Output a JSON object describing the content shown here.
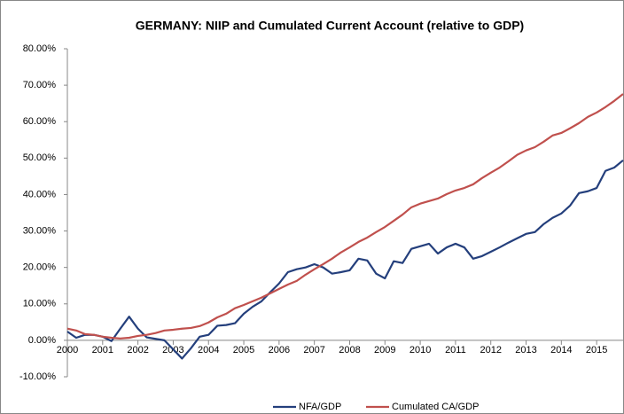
{
  "chart_data": {
    "type": "line",
    "title": "GERMANY: NIIP and Cumulated Current Account (relative to GDP)",
    "x": [
      2000,
      2000.25,
      2000.5,
      2000.75,
      2001,
      2001.25,
      2001.5,
      2001.75,
      2002,
      2002.25,
      2002.5,
      2002.75,
      2003,
      2003.25,
      2003.5,
      2003.75,
      2004,
      2004.25,
      2004.5,
      2004.75,
      2005,
      2005.25,
      2005.5,
      2005.75,
      2006,
      2006.25,
      2006.5,
      2006.75,
      2007,
      2007.25,
      2007.5,
      2007.75,
      2008,
      2008.25,
      2008.5,
      2008.75,
      2009,
      2009.25,
      2009.5,
      2009.75,
      2010,
      2010.25,
      2010.5,
      2010.75,
      2011,
      2011.25,
      2011.5,
      2011.75,
      2012,
      2012.25,
      2012.5,
      2012.75,
      2013,
      2013.25,
      2013.5,
      2013.75,
      2014,
      2014.25,
      2014.5,
      2014.75,
      2015,
      2015.25,
      2015.5,
      2015.75
    ],
    "series": [
      {
        "name": "NFA/GDP",
        "color": "#243f7c",
        "values": [
          2.4,
          0.7,
          1.5,
          1.5,
          1.0,
          -0.2,
          3.2,
          6.5,
          3.2,
          0.8,
          0.4,
          0.0,
          -2.5,
          -5.0,
          -2.2,
          1.0,
          1.5,
          4.0,
          4.2,
          4.7,
          7.3,
          9.2,
          10.7,
          13.2,
          15.6,
          18.7,
          19.5,
          20.0,
          20.9,
          20.0,
          18.3,
          18.7,
          19.2,
          22.4,
          21.9,
          18.3,
          17.0,
          21.7,
          21.2,
          25.1,
          25.8,
          26.5,
          23.8,
          25.5,
          26.5,
          25.5,
          22.4,
          23.1,
          24.3,
          25.5,
          26.8,
          28.0,
          29.2,
          29.7,
          31.9,
          33.6,
          34.8,
          37.0,
          40.4,
          40.9,
          41.8,
          46.5,
          47.4,
          49.4
        ]
      },
      {
        "name": "Cumulated CA/GDP",
        "color": "#c0504d",
        "values": [
          3.2,
          2.7,
          1.7,
          1.5,
          1.0,
          0.7,
          0.5,
          0.7,
          1.2,
          1.5,
          2.0,
          2.7,
          2.9,
          3.2,
          3.4,
          3.9,
          4.9,
          6.3,
          7.3,
          8.8,
          9.7,
          10.7,
          11.7,
          12.9,
          14.1,
          15.3,
          16.3,
          18.0,
          19.5,
          20.9,
          22.4,
          24.1,
          25.5,
          27.0,
          28.2,
          29.7,
          31.1,
          32.8,
          34.5,
          36.5,
          37.5,
          38.2,
          38.9,
          40.1,
          41.1,
          41.8,
          42.8,
          44.5,
          46.0,
          47.4,
          49.1,
          50.9,
          52.1,
          53.0,
          54.5,
          56.2,
          56.9,
          58.2,
          59.6,
          61.3,
          62.5,
          64.0,
          65.7,
          67.6
        ]
      }
    ],
    "xlim": [
      2000,
      2015.75
    ],
    "xticks": [
      2000,
      2001,
      2002,
      2003,
      2004,
      2005,
      2006,
      2007,
      2008,
      2009,
      2010,
      2011,
      2012,
      2013,
      2014,
      2015
    ],
    "ylim": [
      -10,
      80
    ],
    "yticks": [
      {
        "value": -10,
        "label": "-10.00%"
      },
      {
        "value": 0,
        "label": "0.00%"
      },
      {
        "value": 10,
        "label": "10.00%"
      },
      {
        "value": 20,
        "label": "20.00%"
      },
      {
        "value": 30,
        "label": "30.00%"
      },
      {
        "value": 40,
        "label": "40.00%"
      },
      {
        "value": 50,
        "label": "50.00%"
      },
      {
        "value": 60,
        "label": "60.00%"
      },
      {
        "value": 70,
        "label": "70.00%"
      },
      {
        "value": 80,
        "label": "80.00%"
      }
    ],
    "grid": false,
    "legend": "bottom"
  }
}
